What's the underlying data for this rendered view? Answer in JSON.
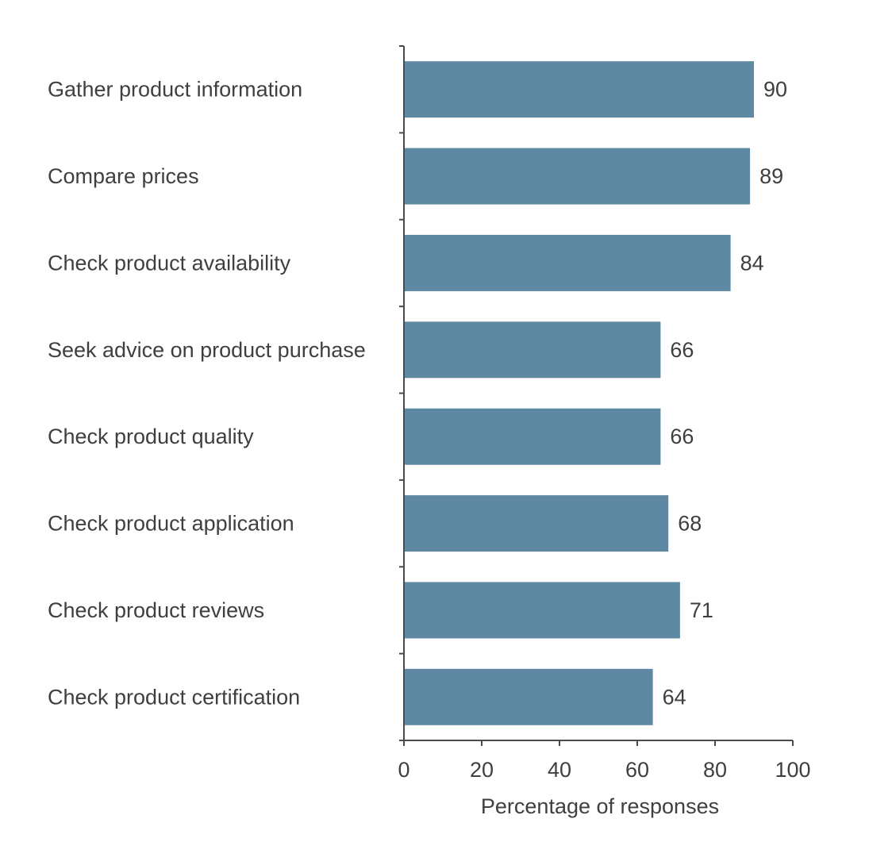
{
  "chart_data": {
    "type": "bar",
    "orientation": "horizontal",
    "categories": [
      "Gather product information",
      "Compare prices",
      "Check product availability",
      "Seek advice on product purchase",
      "Check product quality",
      "Check product application",
      "Check product reviews",
      "Check product certification"
    ],
    "values": [
      90,
      89,
      84,
      66,
      66,
      68,
      71,
      64
    ],
    "data_labels": [
      "90",
      "89",
      "84",
      "66",
      "66",
      "68",
      "71",
      "64"
    ],
    "xlabel": "Percentage of responses",
    "ylabel": "",
    "xlim": [
      0,
      100
    ],
    "x_ticks": [
      0,
      20,
      40,
      60,
      80,
      100
    ],
    "x_tick_labels": [
      "0",
      "20",
      "40",
      "60",
      "80",
      "100"
    ],
    "bar_color": "#5f89a3",
    "grid": false,
    "legend": "none"
  }
}
